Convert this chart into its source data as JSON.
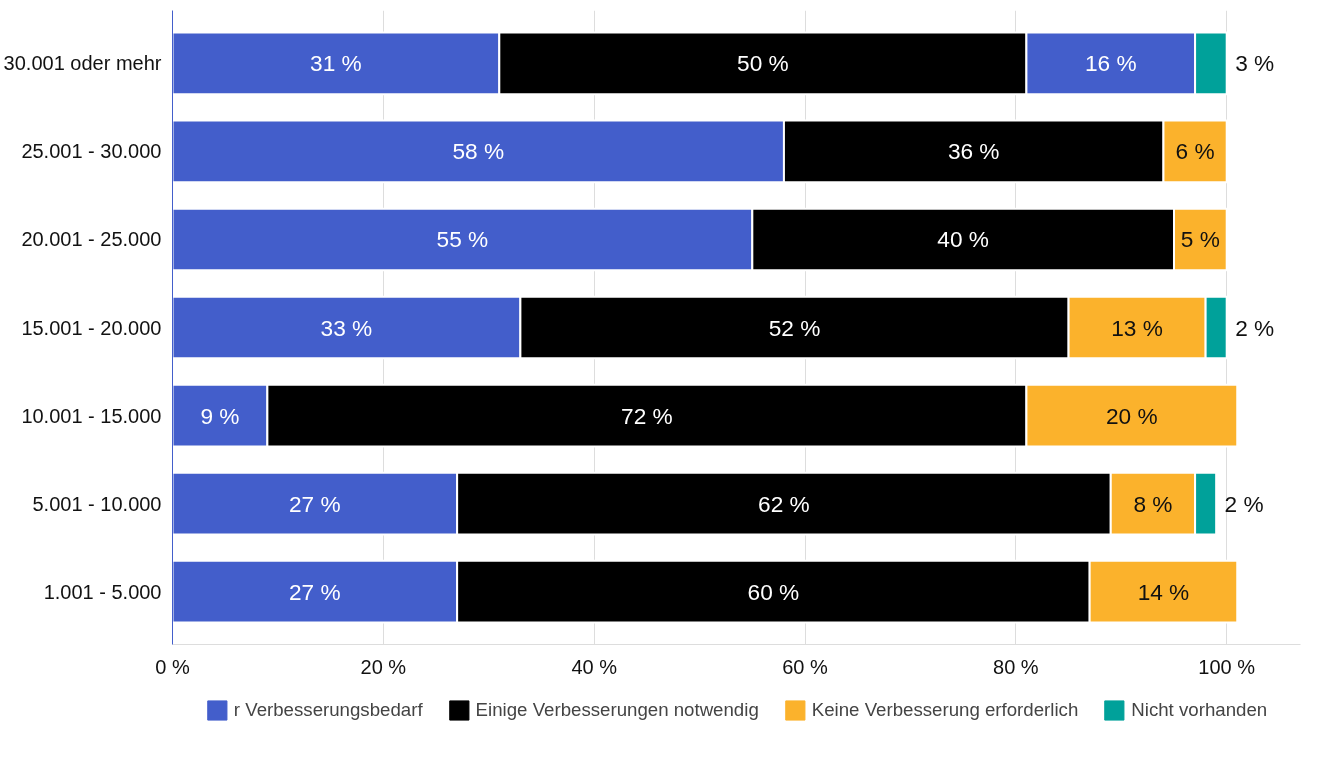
{
  "chart_data": {
    "type": "bar",
    "orientation": "horizontal",
    "stacked": true,
    "categories": [
      "30.001 oder mehr",
      "25.001 - 30.000",
      "20.001 - 25.000",
      "15.001 - 20.000",
      "10.001 - 15.000",
      "5.001 - 10.000",
      "1.001 - 5.000"
    ],
    "series": [
      {
        "name": "r Verbesserungsbedarf",
        "color": "#435ecb",
        "values": [
          31,
          58,
          55,
          33,
          9,
          27,
          27
        ],
        "value_labels": [
          "31 %",
          "58 %",
          "55 %",
          "33 %",
          "9 %",
          "27 %",
          "27 %"
        ]
      },
      {
        "name": "Einige Verbesserungen notwendig",
        "color": "#000000",
        "values": [
          50,
          36,
          40,
          52,
          72,
          62,
          60
        ],
        "value_labels": [
          "50 %",
          "36 %",
          "40 %",
          "52 %",
          "72 %",
          "62 %",
          "60 %"
        ]
      },
      {
        "name": "Keine Verbesserung erforderlich",
        "color": "#fbb22c",
        "colors": [
          "#435ecb",
          "#fbb22c",
          "#fbb22c",
          "#fbb22c",
          "#fbb22c",
          "#fbb22c",
          "#fbb22c"
        ],
        "values": [
          16,
          6,
          5,
          13,
          20,
          8,
          14
        ],
        "value_labels": [
          "16 %",
          "6 %",
          "5 %",
          "13 %",
          "20 %",
          "8 %",
          "14 %"
        ]
      },
      {
        "name": "Nicht vorhanden",
        "color": "#00a19a",
        "values": [
          3,
          null,
          null,
          2,
          null,
          2,
          null
        ],
        "value_labels": [
          "3 %",
          null,
          null,
          "2 %",
          null,
          "2 %",
          null
        ]
      }
    ],
    "xlim": [
      0,
      107
    ],
    "xticks": [
      {
        "value": 0,
        "label": "0 %"
      },
      {
        "value": 20,
        "label": "20 %"
      },
      {
        "value": 40,
        "label": "40 %"
      },
      {
        "value": 60,
        "label": "60 %"
      },
      {
        "value": 80,
        "label": "80 %"
      },
      {
        "value": 100,
        "label": "100 %"
      }
    ],
    "grid": "x",
    "legend": "bottom"
  }
}
